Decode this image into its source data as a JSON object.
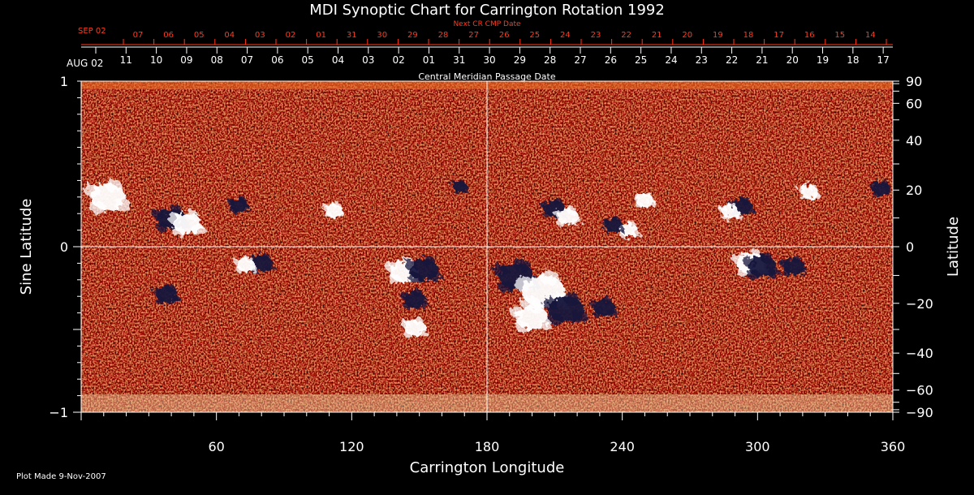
{
  "chart_data": {
    "type": "heatmap",
    "title": "MDI Synoptic Chart for Carrington Rotation 1992",
    "xlabel": "Carrington Longitude",
    "ylabel_left": "Sine Latitude",
    "ylabel_right": "Latitude",
    "xlim": [
      0,
      360
    ],
    "ylim": [
      -1,
      1
    ],
    "x_ticks": [
      60,
      120,
      180,
      240,
      300,
      360
    ],
    "y_ticks_left": [
      1,
      0,
      -1
    ],
    "y_tick_labels_left": [
      "1",
      "0",
      "−1"
    ],
    "y_ticks_right_deg": [
      90,
      60,
      40,
      20,
      0,
      -20,
      -40,
      -60,
      -90
    ],
    "y_tick_labels_right": [
      "90",
      "60",
      "40",
      "20",
      "0",
      "−20",
      "−40",
      "−60",
      "−90"
    ],
    "top_axis": {
      "label": "Central Meridian Passage Date",
      "start_label": "AUG 02",
      "dates": [
        "11",
        "10",
        "09",
        "08",
        "07",
        "06",
        "05",
        "04",
        "03",
        "02",
        "01",
        "31",
        "30",
        "29",
        "28",
        "27",
        "26",
        "25",
        "24",
        "23",
        "22",
        "21",
        "20",
        "19",
        "18",
        "17"
      ]
    },
    "next_axis": {
      "label": "Next CR CMP Date",
      "start_label": "SEP 02",
      "dates": [
        "07",
        "06",
        "05",
        "04",
        "03",
        "02",
        "01",
        "31",
        "30",
        "29",
        "28",
        "27",
        "26",
        "25",
        "24",
        "23",
        "22",
        "21",
        "20",
        "19",
        "18",
        "17",
        "16",
        "15",
        "14"
      ]
    },
    "regions": [
      {
        "lon": 12,
        "lat": 0.3,
        "polarity": "positive",
        "size": 1.0
      },
      {
        "lon": 40,
        "lat": 0.17,
        "polarity": "negative",
        "size": 0.8
      },
      {
        "lon": 47,
        "lat": 0.14,
        "polarity": "positive",
        "size": 0.8
      },
      {
        "lon": 70,
        "lat": 0.25,
        "polarity": "negative",
        "size": 0.5
      },
      {
        "lon": 112,
        "lat": 0.22,
        "polarity": "positive",
        "size": 0.5
      },
      {
        "lon": 80,
        "lat": -0.1,
        "polarity": "negative",
        "size": 0.6
      },
      {
        "lon": 73,
        "lat": -0.11,
        "polarity": "positive",
        "size": 0.5
      },
      {
        "lon": 38,
        "lat": -0.29,
        "polarity": "negative",
        "size": 0.6
      },
      {
        "lon": 143,
        "lat": -0.15,
        "polarity": "positive",
        "size": 0.8
      },
      {
        "lon": 152,
        "lat": -0.14,
        "polarity": "negative",
        "size": 0.8
      },
      {
        "lon": 148,
        "lat": -0.32,
        "polarity": "negative",
        "size": 0.6
      },
      {
        "lon": 148,
        "lat": -0.49,
        "polarity": "positive",
        "size": 0.6
      },
      {
        "lon": 168,
        "lat": 0.36,
        "polarity": "negative",
        "size": 0.4
      },
      {
        "lon": 193,
        "lat": -0.18,
        "polarity": "negative",
        "size": 1.0
      },
      {
        "lon": 205,
        "lat": -0.27,
        "polarity": "positive",
        "size": 1.2
      },
      {
        "lon": 215,
        "lat": -0.38,
        "polarity": "negative",
        "size": 1.0
      },
      {
        "lon": 200,
        "lat": -0.43,
        "polarity": "positive",
        "size": 0.9
      },
      {
        "lon": 232,
        "lat": -0.37,
        "polarity": "negative",
        "size": 0.6
      },
      {
        "lon": 210,
        "lat": 0.23,
        "polarity": "negative",
        "size": 0.6
      },
      {
        "lon": 216,
        "lat": 0.18,
        "polarity": "positive",
        "size": 0.6
      },
      {
        "lon": 243,
        "lat": 0.1,
        "polarity": "positive",
        "size": 0.5
      },
      {
        "lon": 236,
        "lat": 0.13,
        "polarity": "negative",
        "size": 0.5
      },
      {
        "lon": 250,
        "lat": 0.28,
        "polarity": "positive",
        "size": 0.5
      },
      {
        "lon": 297,
        "lat": -0.1,
        "polarity": "positive",
        "size": 0.8
      },
      {
        "lon": 302,
        "lat": -0.12,
        "polarity": "negative",
        "size": 0.8
      },
      {
        "lon": 316,
        "lat": -0.12,
        "polarity": "negative",
        "size": 0.6
      },
      {
        "lon": 293,
        "lat": 0.24,
        "polarity": "negative",
        "size": 0.6
      },
      {
        "lon": 288,
        "lat": 0.21,
        "polarity": "positive",
        "size": 0.5
      },
      {
        "lon": 323,
        "lat": 0.33,
        "polarity": "positive",
        "size": 0.5
      },
      {
        "lon": 355,
        "lat": 0.35,
        "polarity": "negative",
        "size": 0.5
      }
    ]
  },
  "footer": {
    "plot_made": "Plot Made  9-Nov-2007"
  },
  "colors": {
    "background": "#000000",
    "text": "#ffffff",
    "accent_red": "#ff3a1a",
    "field_base": "#c8501a",
    "positive": "#ffffff",
    "negative": "#14143c"
  }
}
